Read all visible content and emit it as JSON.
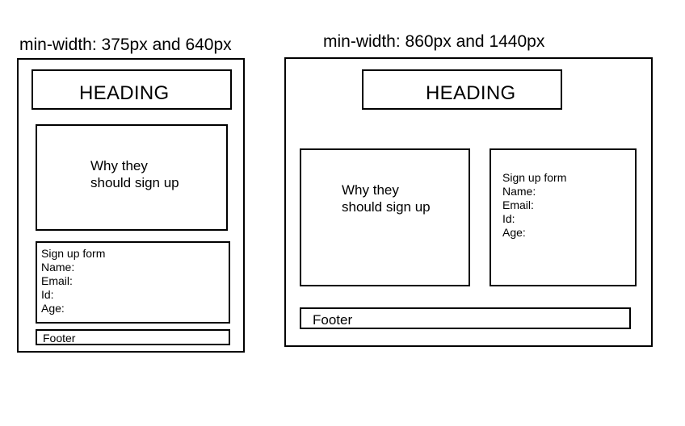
{
  "mobile": {
    "caption": "min-width: 375px and 640px",
    "heading": "HEADING",
    "why": [
      "Why they",
      "should sign up"
    ],
    "form": {
      "title": "Sign up form",
      "fields": [
        "Name:",
        "Email:",
        "Id:",
        "Age:"
      ]
    },
    "footer": "Footer"
  },
  "desktop": {
    "caption": "min-width: 860px and 1440px",
    "heading": "HEADING",
    "why": [
      "Why they",
      "should sign up"
    ],
    "form": {
      "title": "Sign up form",
      "fields": [
        "Name:",
        "Email:",
        "Id:",
        "Age:"
      ]
    },
    "footer": "Footer"
  }
}
